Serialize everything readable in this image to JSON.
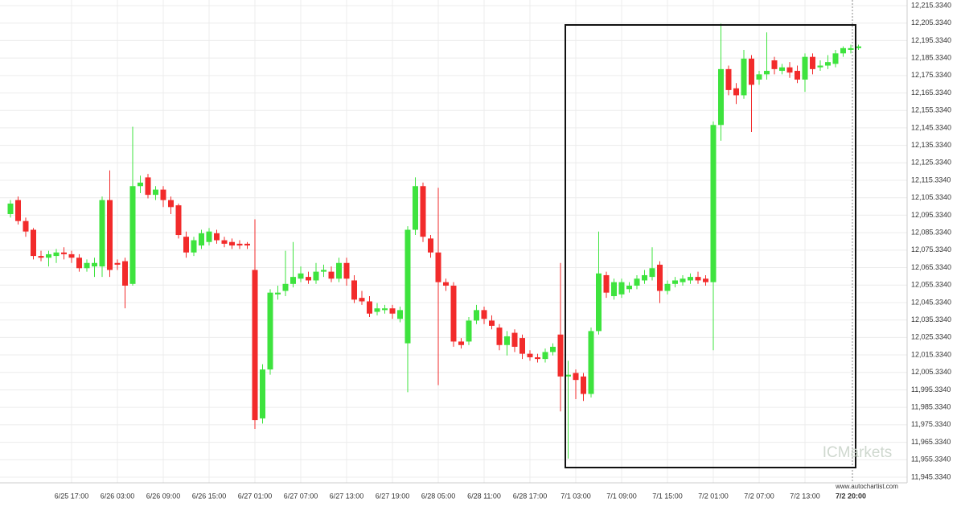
{
  "chart_data": {
    "type": "candlestick",
    "categories": [
      null,
      null,
      null,
      null,
      null,
      null,
      null,
      null,
      "6/25 17:00",
      null,
      null,
      null,
      null,
      null,
      "6/26 03:00",
      null,
      null,
      null,
      null,
      null,
      "6/26 09:00",
      null,
      null,
      null,
      null,
      null,
      "6/26 15:00",
      null,
      null,
      null,
      null,
      null,
      "6/27 01:00",
      null,
      null,
      null,
      null,
      null,
      "6/27 07:00",
      null,
      null,
      null,
      null,
      null,
      "6/27 13:00",
      null,
      null,
      null,
      null,
      null,
      "6/27 19:00",
      null,
      null,
      null,
      null,
      null,
      "6/28 05:00",
      null,
      null,
      null,
      null,
      null,
      "6/28 11:00",
      null,
      null,
      null,
      null,
      null,
      "6/28 17:00",
      null,
      null,
      null,
      null,
      null,
      "7/1 03:00",
      null,
      null,
      null,
      null,
      null,
      "7/1 09:00",
      null,
      null,
      null,
      null,
      null,
      "7/1 15:00",
      null,
      null,
      null,
      null,
      null,
      "7/2 01:00",
      null,
      null,
      null,
      null,
      null,
      "7/2 07:00",
      null,
      null,
      null,
      null,
      null,
      "7/2 13:00",
      null,
      null,
      null,
      null,
      null,
      "7/2 20:00",
      null
    ],
    "open": [
      12096,
      12104,
      12092,
      12087,
      12072,
      12071,
      12072,
      12074,
      12073,
      12071,
      12065,
      12066,
      12066,
      12104,
      12068,
      12069,
      12056,
      12112,
      12117,
      12107,
      12110,
      12104,
      12101,
      12083,
      12074,
      12078,
      12080,
      12085,
      12081,
      12080,
      12079,
      12079,
      12064,
      11979,
      12007,
      12050,
      12052,
      12056,
      12059,
      12060,
      12058,
      12063,
      12063,
      12059,
      12068,
      12058,
      12048,
      12046,
      12040,
      12041,
      12042,
      12036,
      12022,
      12087,
      12112,
      12082,
      12074,
      12057,
      12055,
      12023,
      12023,
      12035,
      12041,
      12035,
      12031,
      12021,
      12028,
      12025,
      12016,
      12014,
      12013,
      12017,
      12027,
      12003,
      12005,
      12003,
      11993,
      12029,
      12061,
      12049,
      12050,
      12053,
      12055,
      12058,
      12060,
      12067,
      12052,
      12056,
      12057,
      12058,
      12060,
      12059,
      12057,
      12147,
      12179,
      12168,
      12164,
      12185,
      12173,
      12176,
      12184,
      12178,
      12180,
      12178,
      12173,
      12186,
      12180,
      12181,
      12182,
      12188,
      12190,
      12191
    ],
    "high": [
      12104,
      12106,
      12094,
      12088,
      12075,
      12075,
      12076,
      12077,
      12075,
      12073,
      12070,
      12071,
      12106,
      12121,
      12070,
      12071,
      12146,
      12118,
      12119,
      12112,
      12112,
      12106,
      12102,
      12086,
      12083,
      12087,
      12088,
      12087,
      12083,
      12082,
      12081,
      12080,
      12093,
      12010,
      12053,
      12055,
      12075,
      12080,
      12066,
      12063,
      12068,
      12067,
      12066,
      12071,
      12071,
      12061,
      12052,
      12049,
      12045,
      12044,
      12044,
      12043,
      12089,
      12117,
      12114,
      12084,
      12111,
      12059,
      12057,
      12025,
      12037,
      12044,
      12043,
      12038,
      12033,
      12029,
      12030,
      12027,
      12018,
      12016,
      12019,
      12022,
      12068,
      12012,
      12007,
      12005,
      12031,
      12086,
      12063,
      12059,
      12059,
      12057,
      12061,
      12064,
      12077,
      12069,
      12058,
      12060,
      12061,
      12062,
      12063,
      12061,
      12149,
      12205,
      12181,
      12171,
      12190,
      12187,
      12178,
      12200,
      12186,
      12182,
      12183,
      12181,
      12188,
      12188,
      12184,
      12187,
      12190,
      12192,
      12193,
      12193
    ],
    "low": [
      12094,
      12090,
      12083,
      12070,
      12069,
      12066,
      12068,
      12070,
      12068,
      12063,
      12063,
      12060,
      12060,
      12060,
      12064,
      12042,
      12055,
      12108,
      12105,
      12104,
      12100,
      12096,
      12082,
      12071,
      12072,
      12076,
      12078,
      12079,
      12077,
      12076,
      12076,
      12076,
      11973,
      11976,
      12004,
      12047,
      12049,
      12054,
      12057,
      12056,
      12056,
      12060,
      12057,
      12057,
      12055,
      12045,
      12044,
      12037,
      12038,
      12039,
      12036,
      12034,
      11994,
      12084,
      12080,
      12071,
      11998,
      12052,
      12020,
      12019,
      12021,
      12033,
      12033,
      12030,
      12018,
      12015,
      12017,
      12013,
      12012,
      12011,
      12011,
      12015,
      11983,
      11956,
      11990,
      11989,
      11991,
      12027,
      12048,
      12047,
      12048,
      12051,
      12053,
      12056,
      12058,
      12045,
      12050,
      12054,
      12055,
      12056,
      12056,
      12055,
      12018,
      12138,
      12164,
      12159,
      12162,
      12143,
      12170,
      12173,
      12176,
      12176,
      12174,
      12171,
      12166,
      12176,
      12178,
      12179,
      12180,
      12186,
      12188,
      12190
    ],
    "close": [
      12102,
      12092,
      12086,
      12072,
      12071,
      12073,
      12074,
      12073,
      12071,
      12065,
      12068,
      12068,
      12104,
      12064,
      12067,
      12055,
      12112,
      12114,
      12107,
      12110,
      12104,
      12100,
      12084,
      12074,
      12081,
      12085,
      12086,
      12081,
      12079,
      12078,
      12078,
      12078,
      11978,
      12007,
      12051,
      12051,
      12056,
      12060,
      12062,
      12058,
      12063,
      12064,
      12059,
      12068,
      12059,
      12047,
      12046,
      12039,
      12042,
      12042,
      12039,
      12041,
      12087,
      12112,
      12083,
      12074,
      12057,
      12055,
      12023,
      12021,
      12035,
      12041,
      12036,
      12032,
      12021,
      12026,
      12020,
      12016,
      12014,
      12013,
      12017,
      12020,
      12003,
      12004,
      12001,
      11993,
      12029,
      12062,
      12051,
      12057,
      12057,
      12055,
      12059,
      12061,
      12065,
      12052,
      12056,
      12058,
      12059,
      12060,
      12058,
      12057,
      12147,
      12179,
      12167,
      12164,
      12185,
      12170,
      12176,
      12178,
      12179,
      12180,
      12177,
      12173,
      12186,
      12179,
      12181,
      12183,
      12188,
      12191,
      12191,
      12192
    ],
    "up_color": "#3ee33e",
    "down_color": "#f22b2b",
    "ylim": [
      11942.1,
      12218.56
    ],
    "yticks": [
      {
        "value": 11945.334,
        "label": "11,945.3340"
      },
      {
        "value": 11955.334,
        "label": "11,955.3340"
      },
      {
        "value": 11965.334,
        "label": "11,965.3340"
      },
      {
        "value": 11975.334,
        "label": "11,975.3340"
      },
      {
        "value": 11985.334,
        "label": "11,985.3340"
      },
      {
        "value": 11995.334,
        "label": "11,995.3340"
      },
      {
        "value": 12005.334,
        "label": "12,005.3340"
      },
      {
        "value": 12015.334,
        "label": "12,015.3340"
      },
      {
        "value": 12025.334,
        "label": "12,025.3340"
      },
      {
        "value": 12035.334,
        "label": "12,035.3340"
      },
      {
        "value": 12045.334,
        "label": "12,045.3340"
      },
      {
        "value": 12055.334,
        "label": "12,055.3340"
      },
      {
        "value": 12065.334,
        "label": "12,065.3340"
      },
      {
        "value": 12075.334,
        "label": "12,075.3340"
      },
      {
        "value": 12085.334,
        "label": "12,085.3340"
      },
      {
        "value": 12095.334,
        "label": "12,095.3340"
      },
      {
        "value": 12105.334,
        "label": "12,105.3340"
      },
      {
        "value": 12115.334,
        "label": "12,115.3340"
      },
      {
        "value": 12125.334,
        "label": "12,125.3340"
      },
      {
        "value": 12135.334,
        "label": "12,135.3340"
      },
      {
        "value": 12145.334,
        "label": "12,145.3340"
      },
      {
        "value": 12155.334,
        "label": "12,155.3340"
      },
      {
        "value": 12165.334,
        "label": "12,165.3340"
      },
      {
        "value": 12175.334,
        "label": "12,175.3340"
      },
      {
        "value": 12185.334,
        "label": "12,185.3340"
      },
      {
        "value": 12195.334,
        "label": "12,195.3340"
      },
      {
        "value": 12205.334,
        "label": "12,205.3340"
      },
      {
        "value": 12215.334,
        "label": "12,215.3340"
      }
    ],
    "grid": true,
    "watermark": "ICMarkets",
    "source": "www.autochartist.com"
  }
}
